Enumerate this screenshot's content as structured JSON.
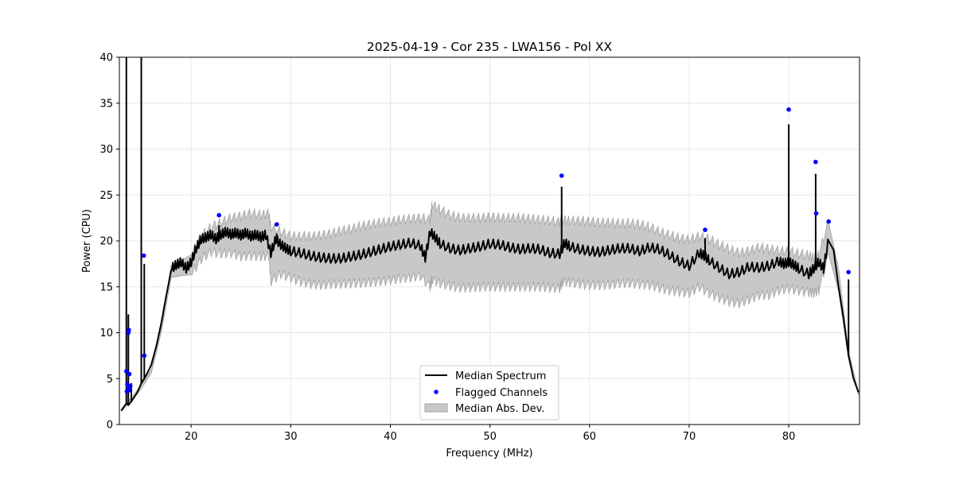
{
  "chart_data": {
    "type": "line",
    "title": "2025-04-19 - Cor 235 - LWA156 - Pol XX",
    "xlabel": "Frequency (MHz)",
    "ylabel": "Power (CPU)",
    "xlim": [
      12.8,
      87.1
    ],
    "ylim": [
      0,
      40
    ],
    "xticks": [
      20,
      30,
      40,
      50,
      60,
      70,
      80
    ],
    "yticks": [
      0,
      5,
      10,
      15,
      20,
      25,
      30,
      35,
      40
    ],
    "grid": true,
    "legend_position": "lower-center",
    "colors": {
      "line": "#000000",
      "flag": "#0000ff",
      "band_fill": "#c8c8c8",
      "band_edge": "#a0a0a0",
      "grid": "#e6e6e6"
    },
    "legend": [
      {
        "key": "line",
        "label": "Median Spectrum"
      },
      {
        "key": "flag",
        "label": "Flagged Channels"
      },
      {
        "key": "band",
        "label": "Median Abs. Dev."
      }
    ],
    "median_spectrum": {
      "x": [
        13.0,
        13.3,
        13.5,
        13.7,
        14.0,
        14.3,
        14.6,
        14.8,
        15.0,
        15.3,
        15.6,
        16.0,
        16.5,
        17.0,
        17.5,
        18.0,
        18.5,
        19.0,
        19.5,
        20.0,
        20.5,
        21.0,
        21.5,
        22.0,
        22.5,
        23.0,
        23.5,
        24.0,
        24.5,
        25.0,
        25.5,
        26.0,
        26.5,
        27.0,
        27.5,
        28.0,
        28.5,
        29.0,
        29.5,
        30.0,
        31.0,
        32.0,
        33.0,
        34.0,
        35.0,
        36.0,
        37.0,
        38.0,
        39.0,
        40.0,
        41.0,
        42.0,
        43.0,
        43.5,
        44.0,
        44.5,
        45.0,
        46.0,
        47.0,
        48.0,
        49.0,
        50.0,
        51.0,
        52.0,
        53.0,
        54.0,
        55.0,
        56.0,
        57.0,
        57.5,
        58.0,
        59.0,
        60.0,
        61.0,
        62.0,
        63.0,
        64.0,
        65.0,
        66.0,
        67.0,
        68.0,
        69.0,
        70.0,
        71.0,
        71.5,
        72.0,
        73.0,
        74.0,
        75.0,
        76.0,
        77.0,
        78.0,
        79.0,
        79.5,
        80.0,
        80.5,
        81.0,
        82.0,
        82.5,
        83.0,
        83.5,
        84.0,
        84.5,
        85.0,
        85.5,
        86.0,
        86.5,
        87.0
      ],
      "y": [
        1.5,
        2.0,
        2.3,
        2.1,
        2.5,
        3.0,
        3.5,
        4.0,
        4.5,
        5.0,
        5.6,
        6.5,
        8.5,
        11.0,
        14.0,
        16.8,
        17.2,
        17.5,
        16.8,
        17.5,
        19.0,
        20.0,
        20.2,
        20.5,
        20.0,
        20.5,
        20.8,
        20.5,
        20.7,
        20.4,
        20.7,
        20.3,
        20.5,
        20.2,
        20.5,
        18.5,
        20.0,
        19.4,
        19.0,
        18.7,
        18.5,
        18.2,
        18.0,
        17.9,
        17.9,
        18.1,
        18.3,
        18.6,
        18.9,
        19.2,
        19.4,
        19.6,
        19.3,
        18.0,
        20.8,
        20.2,
        19.5,
        19.0,
        18.8,
        19.0,
        19.2,
        19.5,
        19.4,
        19.1,
        18.9,
        19.0,
        18.9,
        18.5,
        18.4,
        19.6,
        19.2,
        18.9,
        18.7,
        18.6,
        18.8,
        19.0,
        19.0,
        18.7,
        19.1,
        18.9,
        18.3,
        17.6,
        17.1,
        18.5,
        18.2,
        17.7,
        16.9,
        16.2,
        16.4,
        17.0,
        16.9,
        17.1,
        17.6,
        17.3,
        17.5,
        17.2,
        16.8,
        16.2,
        16.8,
        17.5,
        16.8,
        20.0,
        19.0,
        15.0,
        11.5,
        7.5,
        5.0,
        3.5
      ],
      "spikes": [
        [
          13.5,
          40
        ],
        [
          13.7,
          12.0
        ],
        [
          14.0,
          4.5
        ],
        [
          15.0,
          40
        ],
        [
          15.3,
          17.5
        ],
        [
          22.8,
          21.7
        ],
        [
          28.6,
          20.8
        ],
        [
          44.2,
          21.0
        ],
        [
          57.2,
          25.9
        ],
        [
          71.6,
          20.3
        ],
        [
          80.0,
          32.7
        ],
        [
          82.7,
          27.3
        ],
        [
          86.0,
          15.8
        ]
      ]
    },
    "mad_band": {
      "x": [
        13.0,
        14.0,
        15.0,
        16.0,
        17.0,
        18.0,
        19.0,
        20.0,
        21.0,
        22.0,
        23.0,
        24.0,
        25.0,
        26.0,
        27.0,
        27.8,
        28.0,
        29.0,
        30.0,
        31.0,
        32.0,
        33.0,
        34.0,
        35.0,
        36.0,
        37.0,
        38.0,
        39.0,
        40.0,
        41.0,
        42.0,
        43.0,
        44.0,
        44.2,
        45.0,
        46.0,
        47.0,
        48.0,
        49.0,
        50.0,
        51.0,
        52.0,
        53.0,
        54.0,
        55.0,
        56.0,
        57.0,
        57.3,
        58.0,
        59.0,
        60.0,
        61.0,
        62.0,
        63.0,
        64.0,
        65.0,
        66.0,
        67.0,
        68.0,
        69.0,
        70.0,
        71.0,
        72.0,
        73.0,
        74.0,
        75.0,
        76.0,
        77.0,
        78.0,
        79.0,
        80.0,
        81.0,
        82.0,
        82.5,
        83.0,
        84.0,
        85.0,
        86.0,
        87.0
      ],
      "upper": [
        1.7,
        2.9,
        4.3,
        6.0,
        10.5,
        17.3,
        17.9,
        18.5,
        20.5,
        21.5,
        22.0,
        22.5,
        22.7,
        23.0,
        22.8,
        23.0,
        21.5,
        21.0,
        20.5,
        20.5,
        20.5,
        20.6,
        20.8,
        21.1,
        21.3,
        21.6,
        21.8,
        22.0,
        22.1,
        22.3,
        22.4,
        22.5,
        22.3,
        24.0,
        23.4,
        22.8,
        22.5,
        22.5,
        22.5,
        22.6,
        22.5,
        22.5,
        22.5,
        22.4,
        22.3,
        22.2,
        22.0,
        22.3,
        22.2,
        22.2,
        22.1,
        22.0,
        22.0,
        21.9,
        21.9,
        21.8,
        21.5,
        21.0,
        20.6,
        20.3,
        20.1,
        20.5,
        20.2,
        19.6,
        19.1,
        18.7,
        18.9,
        19.3,
        19.1,
        18.9,
        18.9,
        18.6,
        18.4,
        18.2,
        18.5,
        22.0,
        17.0,
        8.0,
        3.5
      ],
      "lower": [
        1.5,
        2.5,
        3.9,
        5.6,
        10.0,
        16.0,
        16.2,
        16.3,
        18.0,
        18.8,
        18.6,
        18.7,
        18.3,
        18.4,
        18.3,
        18.4,
        15.6,
        16.4,
        16.0,
        15.6,
        15.3,
        15.2,
        15.3,
        15.3,
        15.4,
        15.4,
        15.5,
        15.6,
        15.7,
        15.9,
        16.0,
        16.2,
        15.0,
        15.8,
        15.4,
        15.1,
        14.9,
        14.9,
        15.0,
        15.0,
        15.0,
        15.0,
        15.0,
        15.0,
        15.0,
        14.9,
        14.8,
        15.6,
        15.5,
        15.3,
        15.2,
        15.2,
        15.2,
        15.4,
        15.4,
        15.3,
        15.2,
        14.9,
        14.6,
        14.5,
        14.3,
        15.0,
        14.3,
        13.8,
        13.4,
        13.2,
        13.6,
        14.1,
        14.1,
        14.6,
        14.8,
        14.6,
        14.4,
        14.3,
        14.6,
        18.5,
        14.5,
        7.2,
        3.2
      ]
    },
    "flagged_channels": {
      "x": [
        13.5,
        13.6,
        13.7,
        13.75,
        13.8,
        13.9,
        13.55,
        13.65,
        13.72,
        13.85,
        15.25,
        15.3,
        22.8,
        28.6,
        57.2,
        71.6,
        80.0,
        82.7,
        82.75,
        84.0,
        86.0
      ],
      "y": [
        5.8,
        4.4,
        10.0,
        10.3,
        5.5,
        4.2,
        3.6,
        3.8,
        3.7,
        3.9,
        18.4,
        7.5,
        22.8,
        21.8,
        27.1,
        21.2,
        34.3,
        28.6,
        23.0,
        22.1,
        16.6
      ]
    }
  }
}
